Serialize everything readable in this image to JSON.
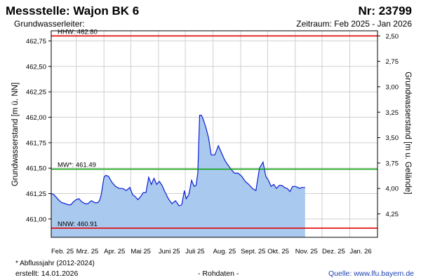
{
  "header": {
    "title": "Messstelle: Wajon BK 6",
    "number": "Nr: 23799",
    "aquifer_label": "Grundwasserleiter:",
    "period": "Zeitraum: Feb 2025 - Jan 2026"
  },
  "footer": {
    "footnote": "* Abflussjahr (2012-2024)",
    "created": "erstellt:  14.01.2026",
    "raw_data": "- Rohdaten -",
    "source": "Quelle: www.lfu.bayern.de"
  },
  "colors": {
    "hhw": "#e00000",
    "mw": "#00a000",
    "nnw": "#e00000",
    "area_fill": "#a9c9ee",
    "area_line": "#0b1fd6",
    "grid": "#cfcfcf"
  },
  "chart_data": {
    "type": "area",
    "ylabel": "Grundwasserstand [m ü. NN]",
    "ylabel_right": "Grundwasserstand [m u. Gelände]",
    "ylim": [
      460.82,
      462.85
    ],
    "ylim_right_note": "right axis = 465.3 − left value",
    "grid": true,
    "yticks": [
      "461,00",
      "461,25",
      "461,50",
      "461,75",
      "462,00",
      "462,25",
      "462,50",
      "462,75"
    ],
    "yticks_right": [
      "2,50",
      "2,75",
      "3,00",
      "3,25",
      "3,50",
      "3,75",
      "4,00",
      "4,25"
    ],
    "xticks": [
      "Feb. 25",
      "Mrz. 25",
      "Apr. 25",
      "Mai 25",
      "Juni 25",
      "Juli 25",
      "Aug. 25",
      "Sept. 25",
      "Okt. 25",
      "Nov. 25",
      "Dez. 25",
      "Jan. 26"
    ],
    "reference_lines": [
      {
        "name": "HHW",
        "label": "HHW: 462.80",
        "value": 462.8
      },
      {
        "name": "MW*",
        "label": "MW*: 461.49",
        "value": 461.49
      },
      {
        "name": "NNW",
        "label": "NNW: 460.91",
        "value": 460.91
      }
    ],
    "series": [
      {
        "x": [
          "2025-02-01",
          "2025-02-04",
          "2025-02-07",
          "2025-02-10",
          "2025-02-13",
          "2025-02-17",
          "2025-02-20",
          "2025-02-23",
          "2025-02-26",
          "2025-03-01",
          "2025-03-04",
          "2025-03-07",
          "2025-03-11",
          "2025-03-14",
          "2025-03-18",
          "2025-03-22",
          "2025-03-25",
          "2025-03-27",
          "2025-03-29",
          "2025-04-01",
          "2025-04-03",
          "2025-04-06",
          "2025-04-10",
          "2025-04-14",
          "2025-04-18",
          "2025-04-22",
          "2025-04-26",
          "2025-04-30",
          "2025-05-03",
          "2025-05-06",
          "2025-05-09",
          "2025-05-12",
          "2025-05-15",
          "2025-05-18",
          "2025-05-21",
          "2025-05-24",
          "2025-05-27",
          "2025-05-30",
          "2025-06-02",
          "2025-06-05",
          "2025-06-08",
          "2025-06-12",
          "2025-06-16",
          "2025-06-20",
          "2025-06-24",
          "2025-06-27",
          "2025-06-30",
          "2025-07-02",
          "2025-07-05",
          "2025-07-08",
          "2025-07-11",
          "2025-07-13",
          "2025-07-15",
          "2025-07-17",
          "2025-07-19",
          "2025-07-21",
          "2025-07-24",
          "2025-07-27",
          "2025-07-30",
          "2025-08-03",
          "2025-08-07",
          "2025-08-11",
          "2025-08-14",
          "2025-08-17",
          "2025-08-21",
          "2025-08-25",
          "2025-08-29",
          "2025-09-02",
          "2025-09-06",
          "2025-09-10",
          "2025-09-14",
          "2025-09-18",
          "2025-09-22",
          "2025-09-26",
          "2025-09-29",
          "2025-10-02",
          "2025-10-05",
          "2025-10-08",
          "2025-10-11",
          "2025-10-14",
          "2025-10-17",
          "2025-10-20",
          "2025-10-23",
          "2025-10-26",
          "2025-10-29",
          "2025-11-01",
          "2025-11-04",
          "2025-11-06",
          "2025-11-08",
          "2025-11-10",
          "2025-11-12"
        ],
        "values": [
          461.25,
          461.24,
          461.21,
          461.18,
          461.16,
          461.15,
          461.14,
          461.14,
          461.17,
          461.19,
          461.2,
          461.17,
          461.15,
          461.15,
          461.18,
          461.16,
          461.16,
          461.18,
          461.24,
          461.41,
          461.43,
          461.42,
          461.36,
          461.32,
          461.3,
          461.3,
          461.28,
          461.31,
          461.24,
          461.22,
          461.19,
          461.22,
          461.26,
          461.26,
          461.41,
          461.34,
          461.4,
          461.34,
          461.37,
          461.33,
          461.27,
          461.2,
          461.15,
          461.18,
          461.13,
          461.14,
          461.28,
          461.2,
          461.24,
          461.38,
          461.32,
          461.33,
          461.45,
          462.02,
          462.02,
          461.98,
          461.9,
          461.8,
          461.63,
          461.63,
          461.72,
          461.64,
          461.58,
          461.54,
          461.49,
          461.45,
          461.45,
          461.42,
          461.37,
          461.34,
          461.3,
          461.28,
          461.5,
          461.56,
          461.42,
          461.38,
          461.32,
          461.34,
          461.3,
          461.33,
          461.33,
          461.31,
          461.3,
          461.27,
          461.32,
          461.32,
          461.31,
          461.3,
          461.31,
          461.31,
          461.31
        ]
      }
    ]
  }
}
